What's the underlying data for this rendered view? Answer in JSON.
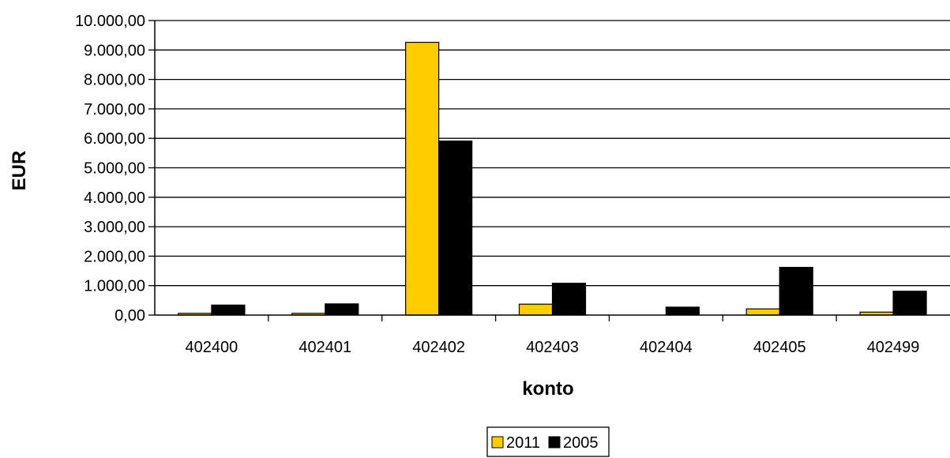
{
  "chart_data": {
    "type": "bar",
    "title": "",
    "xlabel": "konto",
    "ylabel": "EUR",
    "categories": [
      "402400",
      "402401",
      "402402",
      "402403",
      "402404",
      "402405",
      "402499"
    ],
    "series": [
      {
        "name": "2011",
        "color": "#ffcc00",
        "values": [
          60,
          60,
          9260,
          370,
          0,
          210,
          100
        ]
      },
      {
        "name": "2005",
        "color": "#000000",
        "values": [
          340,
          380,
          5910,
          1080,
          270,
          1620,
          810
        ]
      }
    ],
    "ylim": [
      0,
      10000
    ],
    "yticks": [
      "0,00",
      "1.000,00",
      "2.000,00",
      "3.000,00",
      "4.000,00",
      "5.000,00",
      "6.000,00",
      "7.000,00",
      "8.000,00",
      "9.000,00",
      "10.000,00"
    ],
    "grid": true,
    "legend_position": "bottom"
  }
}
